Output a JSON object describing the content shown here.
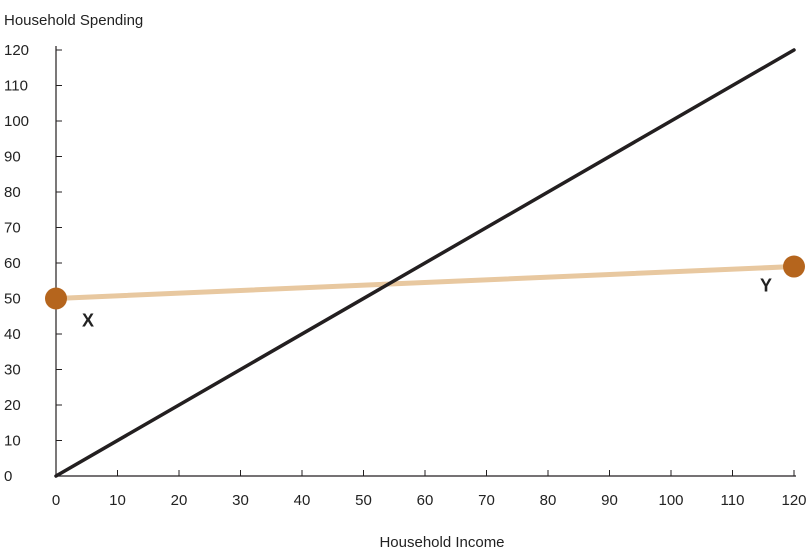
{
  "chart_data": {
    "type": "line",
    "title": "",
    "xlabel": "Household Income",
    "ylabel": "Household Spending",
    "xlim": [
      0,
      120
    ],
    "ylim": [
      0,
      120
    ],
    "x_ticks": [
      "0",
      "10",
      "20",
      "30",
      "40",
      "50",
      "60",
      "70",
      "80",
      "90",
      "100",
      "110",
      "120"
    ],
    "y_ticks": [
      "0",
      "10",
      "20",
      "30",
      "40",
      "50",
      "60",
      "70",
      "80",
      "90",
      "100",
      "110",
      "120"
    ],
    "grid": false,
    "series": [
      {
        "x": [
          0,
          120
        ],
        "y": [
          0,
          120
        ],
        "color": "#231f20"
      },
      {
        "x": [
          0,
          120
        ],
        "y": [
          50,
          59
        ],
        "color": "#e8c8a0",
        "marker_color": "#b5651d"
      }
    ],
    "points": [
      {
        "label": "X",
        "x": 0,
        "y": 50
      },
      {
        "label": "Y",
        "x": 120,
        "y": 59
      }
    ]
  }
}
